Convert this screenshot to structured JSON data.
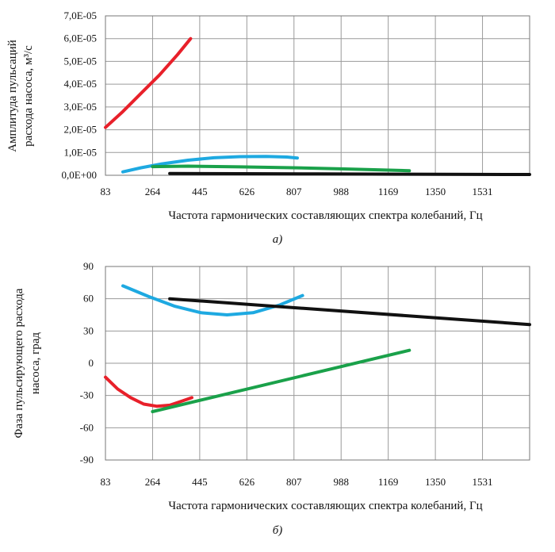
{
  "chart_data": [
    {
      "type": "line",
      "caption": "а)",
      "xlabel": "Частота гармонических составляющих спектра колебаний, Гц",
      "ylabel_lines": [
        "Амплитуда пульсаций",
        "расхода насоса, м³/с"
      ],
      "x_ticks": [
        "83",
        "264",
        "445",
        "626",
        "807",
        "988",
        "1169",
        "1350",
        "1531"
      ],
      "xlim": [
        83,
        1712
      ],
      "ylim": [
        0,
        7e-05
      ],
      "y_ticks": [
        {
          "value": 0,
          "label": "0,0E+00"
        },
        {
          "value": 1e-05,
          "label": "1,0E-05"
        },
        {
          "value": 2e-05,
          "label": "2,0E-05"
        },
        {
          "value": 3e-05,
          "label": "3,0E-05"
        },
        {
          "value": 4e-05,
          "label": "4,0E-05"
        },
        {
          "value": 5e-05,
          "label": "5,0E-05"
        },
        {
          "value": 6e-05,
          "label": "6,0E-05"
        },
        {
          "value": 7e-05,
          "label": "7,0E-05"
        }
      ],
      "grid": true,
      "series": [
        {
          "color": "#e8202a",
          "x": [
            83,
            150,
            220,
            290,
            360,
            410
          ],
          "y": [
            2.1e-05,
            2.8e-05,
            3.6e-05,
            4.4e-05,
            5.3e-05,
            6e-05
          ]
        },
        {
          "color": "#1ea9e1",
          "x": [
            150,
            220,
            300,
            400,
            500,
            600,
            700,
            780,
            820
          ],
          "y": [
            1.5e-06,
            3.3e-06,
            5e-06,
            6.6e-06,
            7.7e-06,
            8.2e-06,
            8.3e-06,
            8e-06,
            7.6e-06
          ]
        },
        {
          "color": "#1aa14a",
          "x": [
            264,
            400,
            600,
            800,
            1000,
            1200,
            1250
          ],
          "y": [
            3.8e-06,
            4e-06,
            3.7e-06,
            3.3e-06,
            2.8e-06,
            2.2e-06,
            2e-06
          ]
        },
        {
          "color": "#111111",
          "x": [
            330,
            600,
            900,
            1200,
            1500,
            1712
          ],
          "y": [
            8e-07,
            7e-07,
            6e-07,
            5e-07,
            4e-07,
            3.5e-07
          ]
        }
      ]
    },
    {
      "type": "line",
      "caption": "б)",
      "xlabel": "Частота гармонических составляющих спектра колебаний, Гц",
      "ylabel_lines": [
        "Фаза пульсирующего расхода",
        "насоса, град"
      ],
      "x_ticks": [
        "83",
        "264",
        "445",
        "626",
        "807",
        "988",
        "1169",
        "1350",
        "1531"
      ],
      "xlim": [
        83,
        1712
      ],
      "ylim": [
        -90,
        90
      ],
      "y_ticks": [
        {
          "value": -90,
          "label": "-90"
        },
        {
          "value": -60,
          "label": "-60"
        },
        {
          "value": -30,
          "label": "-30"
        },
        {
          "value": 0,
          "label": "0"
        },
        {
          "value": 30,
          "label": "30"
        },
        {
          "value": 60,
          "label": "60"
        },
        {
          "value": 90,
          "label": "90"
        }
      ],
      "grid": true,
      "series": [
        {
          "color": "#e8202a",
          "x": [
            83,
            130,
            180,
            230,
            280,
            330,
            380,
            415
          ],
          "y": [
            -13,
            -24,
            -32,
            -38,
            -40,
            -39,
            -35,
            -32
          ]
        },
        {
          "color": "#1ea9e1",
          "x": [
            150,
            250,
            350,
            450,
            550,
            650,
            750,
            840
          ],
          "y": [
            72,
            62,
            53,
            47,
            45,
            47,
            54,
            63
          ]
        },
        {
          "color": "#1aa14a",
          "x": [
            264,
            1250
          ],
          "y": [
            -45,
            12
          ]
        },
        {
          "color": "#111111",
          "x": [
            330,
            1712
          ],
          "y": [
            60,
            36
          ]
        }
      ]
    }
  ]
}
